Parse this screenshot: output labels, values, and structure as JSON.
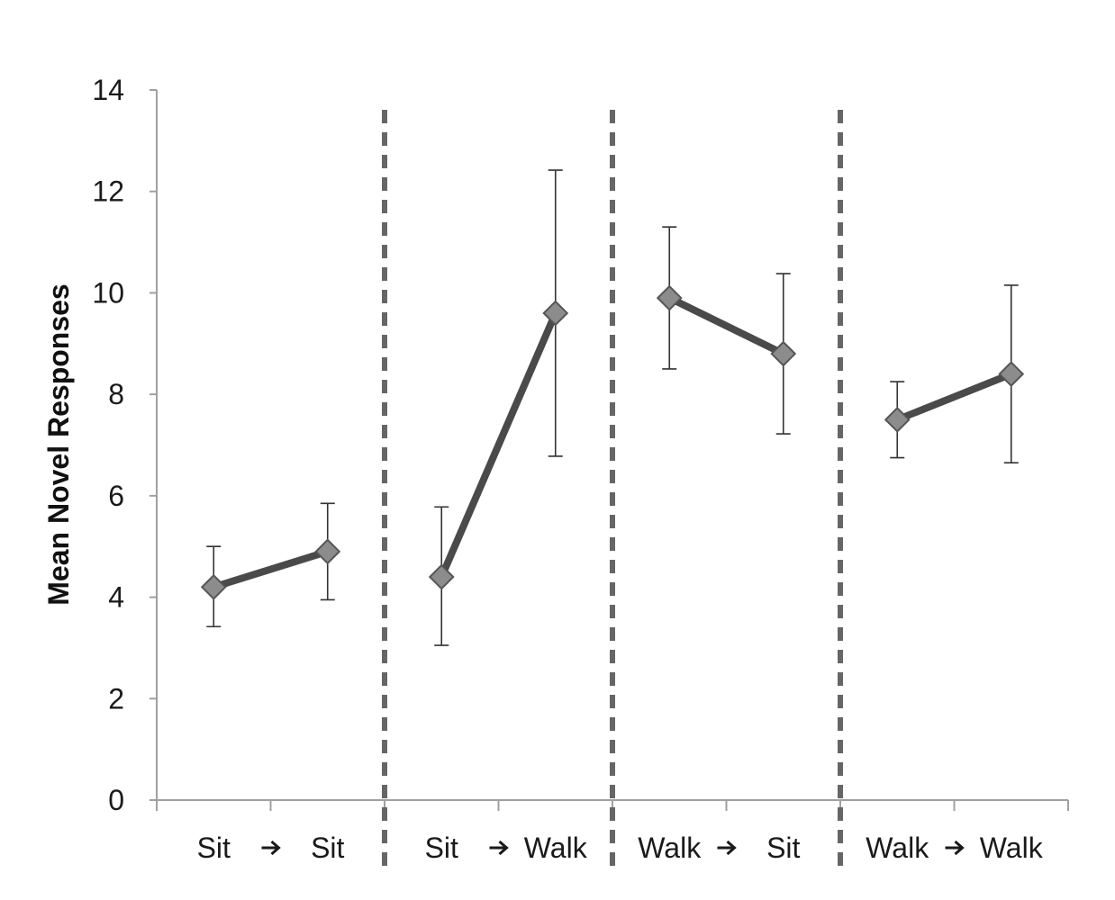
{
  "chart_data": {
    "type": "line",
    "title": "",
    "xlabel": "",
    "ylabel": "Mean Novel Responses",
    "ylim": [
      0,
      14
    ],
    "yticks": [
      "0",
      "2",
      "4",
      "6",
      "8",
      "10",
      "12",
      "14"
    ],
    "grid": false,
    "legend": "none",
    "colors": {
      "line": "#4a4a4a",
      "marker": "#8c8c8c",
      "divider": "#666666",
      "axis": "#a0a0a0",
      "errorbar": "#333333"
    },
    "groups": [
      {
        "from": "Sit",
        "to": "Sit",
        "values": [
          4.2,
          4.9
        ],
        "err_low": [
          3.42,
          3.95
        ],
        "err_high": [
          5.0,
          5.85
        ]
      },
      {
        "from": "Sit",
        "to": "Walk",
        "values": [
          4.4,
          9.6
        ],
        "err_low": [
          3.05,
          6.78
        ],
        "err_high": [
          5.78,
          12.42
        ]
      },
      {
        "from": "Walk",
        "to": "Sit",
        "values": [
          9.9,
          8.8
        ],
        "err_low": [
          8.5,
          7.22
        ],
        "err_high": [
          11.3,
          10.38
        ]
      },
      {
        "from": "Walk",
        "to": "Walk",
        "values": [
          7.5,
          8.4
        ],
        "err_low": [
          6.75,
          6.65
        ],
        "err_high": [
          8.25,
          10.15
        ]
      }
    ]
  }
}
